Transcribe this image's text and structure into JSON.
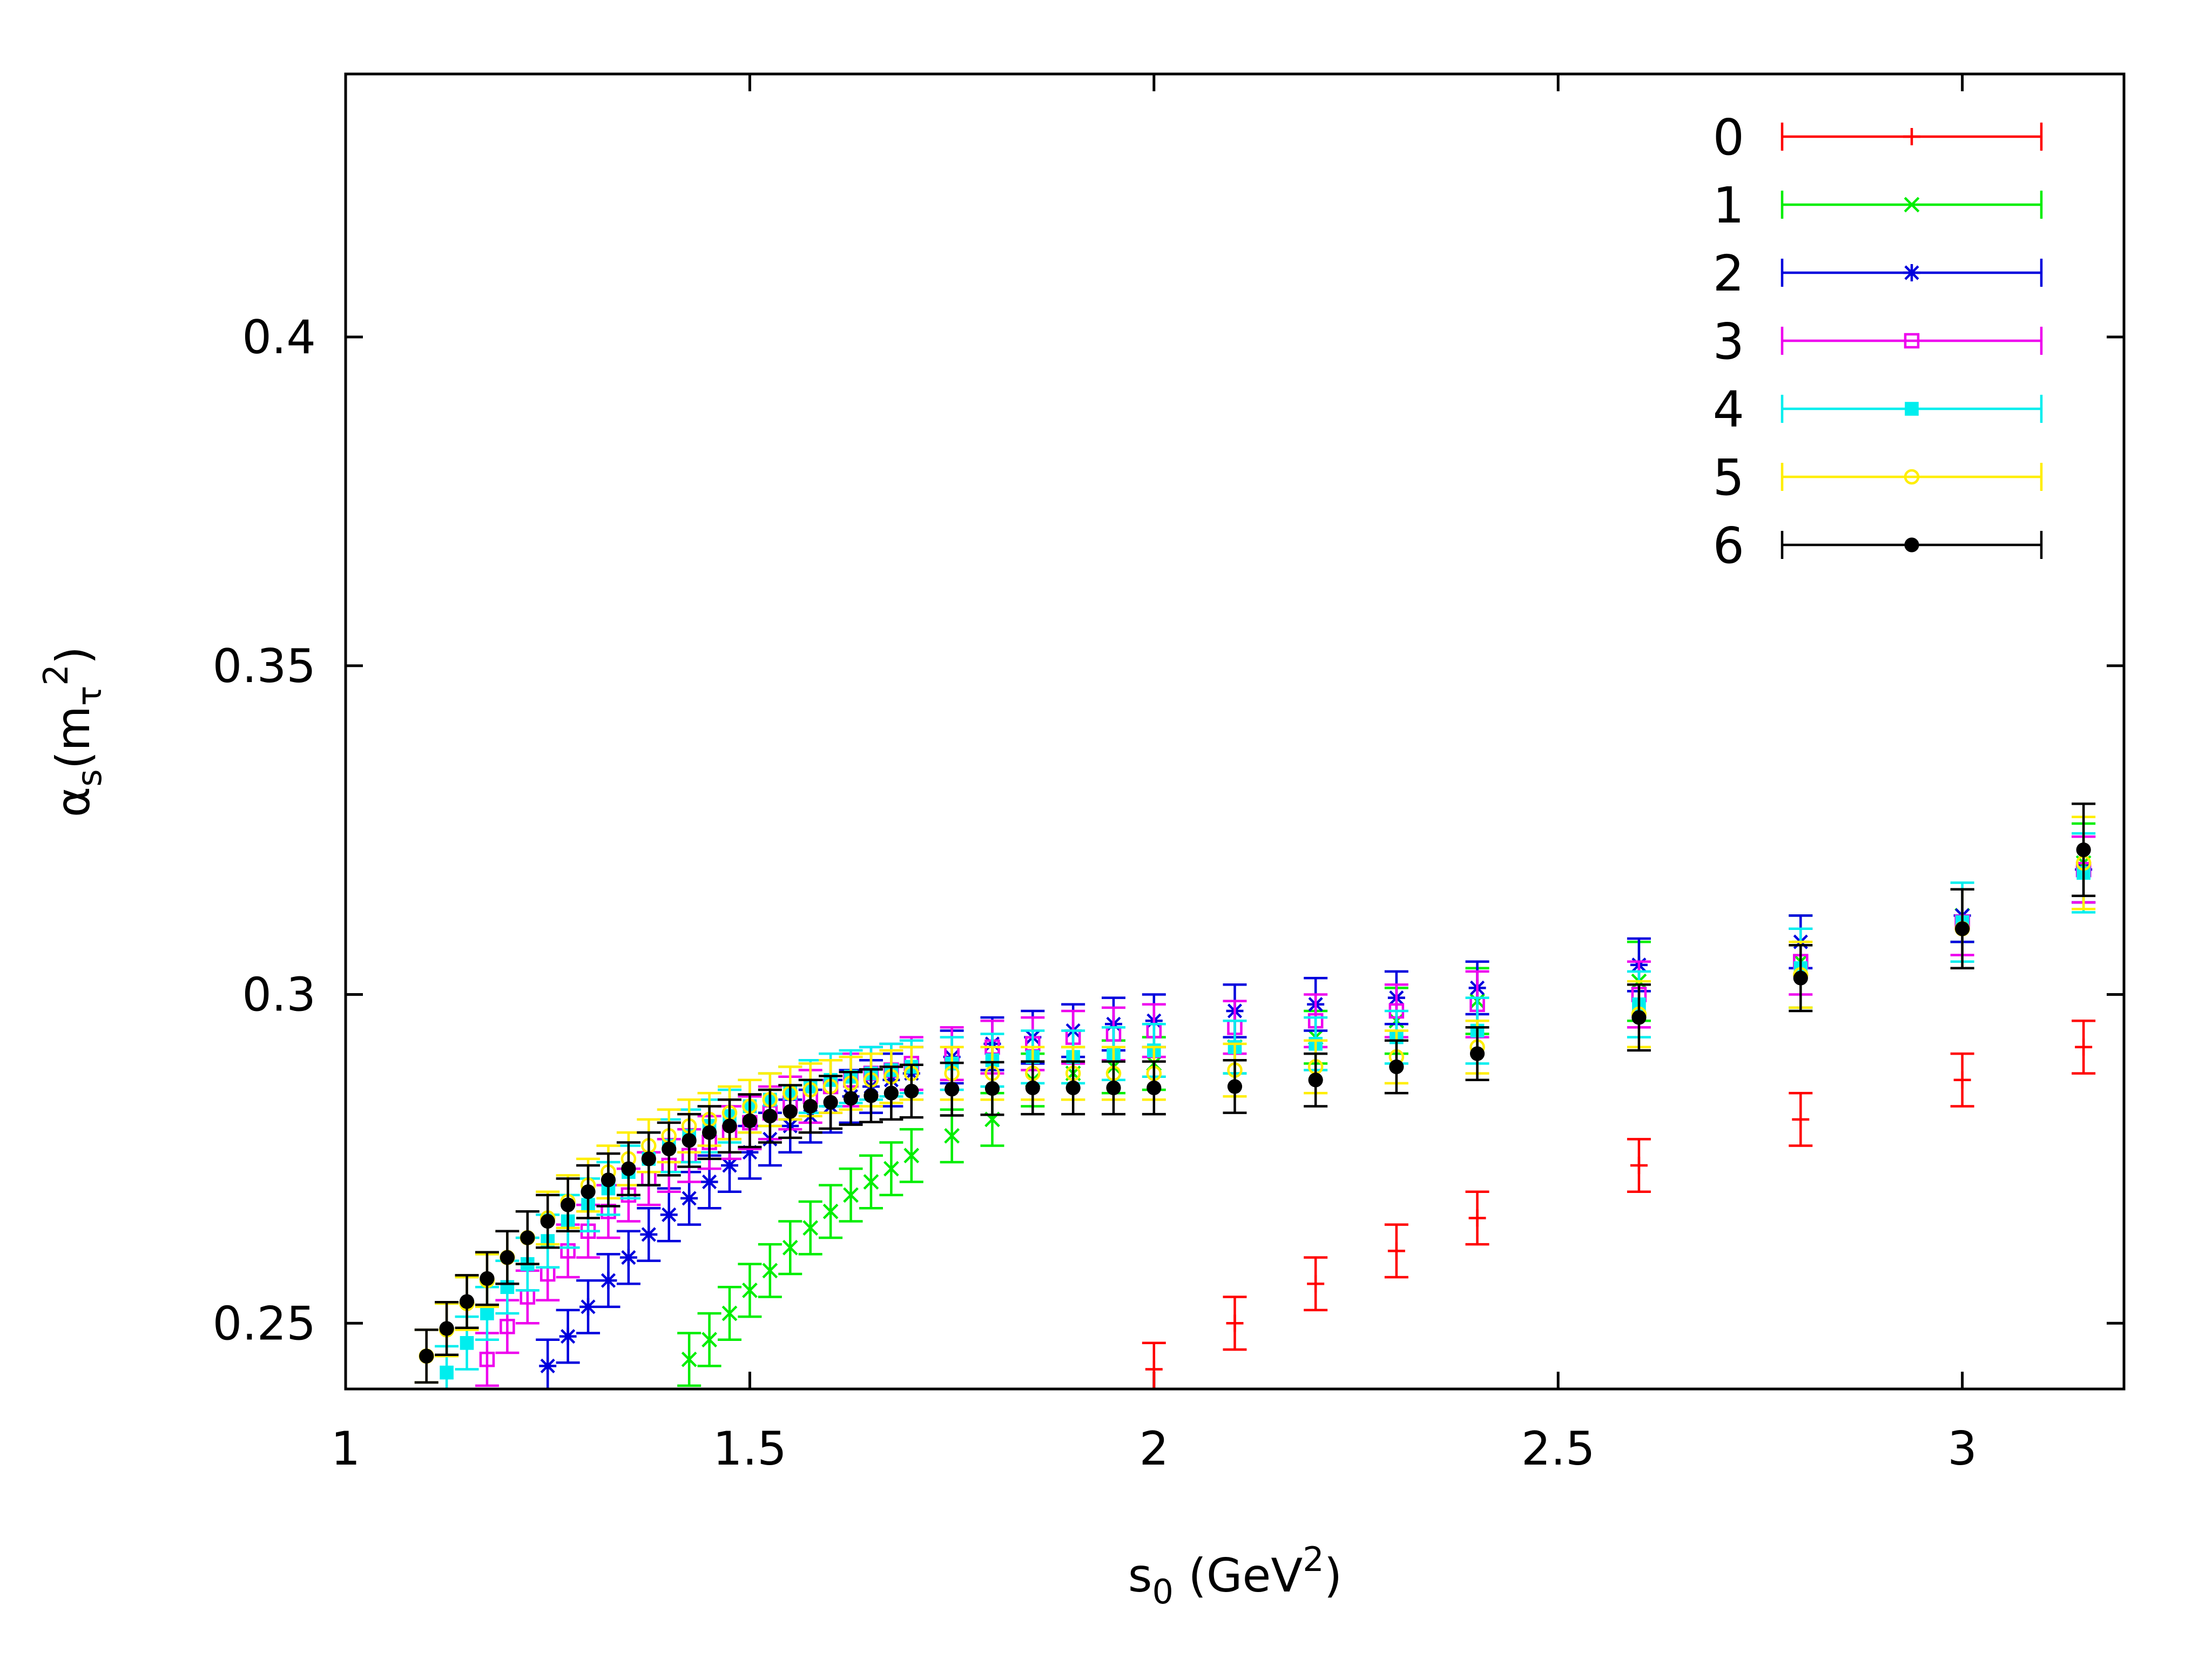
{
  "chart_data": {
    "type": "scatter",
    "title": "",
    "xlabel": {
      "main": "s",
      "sub": "0",
      "mid": " (GeV",
      "sup": "2",
      "end": ")"
    },
    "ylabel": {
      "alpha": "α",
      "sub": "s",
      "paren": "(m",
      "tau": "τ",
      "sup": "2",
      "close": ")"
    },
    "xlim": [
      1.0,
      3.2
    ],
    "ylim": [
      0.24,
      0.44
    ],
    "xticks": [
      {
        "value": 1,
        "label": "1"
      },
      {
        "value": 1.5,
        "label": "1.5"
      },
      {
        "value": 2,
        "label": "2"
      },
      {
        "value": 2.5,
        "label": "2.5"
      },
      {
        "value": 3,
        "label": "3"
      }
    ],
    "yticks": [
      {
        "value": 0.25,
        "label": "0.25"
      },
      {
        "value": 0.3,
        "label": "0.3"
      },
      {
        "value": 0.35,
        "label": "0.35"
      },
      {
        "value": 0.4,
        "label": "0.4"
      }
    ],
    "legend_position": "top-right",
    "series": [
      {
        "name": "0",
        "color": "#ff0000",
        "marker": "plus",
        "x": [
          2.0,
          2.1,
          2.2,
          2.3,
          2.4,
          2.6,
          2.8,
          3.0,
          3.15
        ],
        "y": [
          0.243,
          0.25,
          0.256,
          0.261,
          0.266,
          0.274,
          0.281,
          0.287,
          0.292
        ],
        "err": [
          0.004,
          0.004,
          0.004,
          0.004,
          0.004,
          0.004,
          0.004,
          0.004,
          0.004
        ]
      },
      {
        "name": "1",
        "color": "#00ee00",
        "marker": "cross",
        "x": [
          1.425,
          1.45,
          1.475,
          1.5,
          1.525,
          1.55,
          1.575,
          1.6,
          1.625,
          1.65,
          1.675,
          1.7,
          1.75,
          1.8,
          1.85,
          1.9,
          1.95,
          2.0,
          2.1,
          2.2,
          2.3,
          2.4,
          2.6,
          2.8,
          3.0,
          3.15
        ],
        "y": [
          0.2445,
          0.2475,
          0.2515,
          0.255,
          0.258,
          0.2615,
          0.2645,
          0.267,
          0.2695,
          0.2715,
          0.2735,
          0.2755,
          0.2785,
          0.281,
          0.287,
          0.288,
          0.289,
          0.2895,
          0.292,
          0.2935,
          0.296,
          0.299,
          0.302,
          0.305,
          0.312,
          0.32
        ],
        "err": [
          0.004,
          0.004,
          0.004,
          0.004,
          0.004,
          0.004,
          0.004,
          0.004,
          0.004,
          0.004,
          0.004,
          0.004,
          0.004,
          0.004,
          0.004,
          0.004,
          0.004,
          0.004,
          0.004,
          0.004,
          0.005,
          0.005,
          0.006,
          0.007,
          0.004,
          0.006
        ]
      },
      {
        "name": "2",
        "color": "#0000dd",
        "marker": "star",
        "x": [
          1.25,
          1.275,
          1.3,
          1.325,
          1.35,
          1.375,
          1.4,
          1.425,
          1.45,
          1.475,
          1.5,
          1.525,
          1.55,
          1.575,
          1.6,
          1.625,
          1.65,
          1.675,
          1.7,
          1.75,
          1.8,
          1.85,
          1.9,
          1.95,
          2.0,
          2.1,
          2.2,
          2.3,
          2.4,
          2.6,
          2.8,
          3.0,
          3.15
        ],
        "y": [
          0.2435,
          0.248,
          0.2525,
          0.2565,
          0.26,
          0.2635,
          0.2665,
          0.269,
          0.2715,
          0.274,
          0.276,
          0.278,
          0.28,
          0.2815,
          0.283,
          0.2845,
          0.286,
          0.287,
          0.288,
          0.2905,
          0.2925,
          0.2935,
          0.2945,
          0.2955,
          0.296,
          0.2975,
          0.2985,
          0.2995,
          0.301,
          0.3045,
          0.308,
          0.312,
          0.319
        ],
        "err": [
          0.004,
          0.004,
          0.004,
          0.004,
          0.004,
          0.004,
          0.004,
          0.004,
          0.004,
          0.004,
          0.004,
          0.004,
          0.004,
          0.004,
          0.004,
          0.004,
          0.004,
          0.004,
          0.004,
          0.004,
          0.004,
          0.004,
          0.004,
          0.004,
          0.004,
          0.004,
          0.004,
          0.004,
          0.004,
          0.004,
          0.004,
          0.004,
          0.005
        ]
      },
      {
        "name": "3",
        "color": "#ee00ee",
        "marker": "square-open",
        "x": [
          1.175,
          1.2,
          1.225,
          1.25,
          1.275,
          1.3,
          1.325,
          1.35,
          1.375,
          1.4,
          1.425,
          1.45,
          1.475,
          1.5,
          1.525,
          1.55,
          1.575,
          1.6,
          1.625,
          1.65,
          1.675,
          1.7,
          1.75,
          1.8,
          1.85,
          1.9,
          1.95,
          2.0,
          2.1,
          2.2,
          2.3,
          2.4,
          2.6,
          2.8,
          3.0,
          3.15
        ],
        "y": [
          0.2445,
          0.2495,
          0.254,
          0.2575,
          0.261,
          0.264,
          0.267,
          0.2695,
          0.272,
          0.274,
          0.2755,
          0.2775,
          0.279,
          0.2805,
          0.282,
          0.2835,
          0.2845,
          0.286,
          0.287,
          0.288,
          0.2885,
          0.2895,
          0.291,
          0.292,
          0.2925,
          0.2935,
          0.294,
          0.2945,
          0.295,
          0.296,
          0.2975,
          0.2985,
          0.3,
          0.305,
          0.311,
          0.319
        ],
        "err": [
          0.004,
          0.004,
          0.004,
          0.004,
          0.004,
          0.004,
          0.004,
          0.004,
          0.004,
          0.004,
          0.004,
          0.004,
          0.004,
          0.004,
          0.004,
          0.004,
          0.004,
          0.004,
          0.004,
          0.004,
          0.004,
          0.004,
          0.004,
          0.004,
          0.004,
          0.004,
          0.004,
          0.004,
          0.004,
          0.004,
          0.004,
          0.005,
          0.005,
          0.005,
          0.005,
          0.005
        ]
      },
      {
        "name": "4",
        "color": "#00eeee",
        "marker": "square-filled",
        "x": [
          1.125,
          1.15,
          1.175,
          1.2,
          1.225,
          1.25,
          1.275,
          1.3,
          1.325,
          1.35,
          1.375,
          1.4,
          1.425,
          1.45,
          1.475,
          1.5,
          1.525,
          1.55,
          1.575,
          1.6,
          1.625,
          1.65,
          1.675,
          1.7,
          1.75,
          1.8,
          1.85,
          1.9,
          1.95,
          2.0,
          2.1,
          2.2,
          2.3,
          2.4,
          2.6,
          2.8,
          3.0,
          3.15
        ],
        "y": [
          0.2425,
          0.247,
          0.2515,
          0.2555,
          0.259,
          0.2625,
          0.2655,
          0.268,
          0.2705,
          0.273,
          0.275,
          0.277,
          0.2785,
          0.28,
          0.2815,
          0.283,
          0.284,
          0.285,
          0.286,
          0.287,
          0.2875,
          0.288,
          0.2885,
          0.289,
          0.2895,
          0.29,
          0.2905,
          0.2905,
          0.291,
          0.2915,
          0.292,
          0.2925,
          0.2935,
          0.2945,
          0.2985,
          0.304,
          0.311,
          0.3185
        ],
        "err": [
          0.004,
          0.004,
          0.004,
          0.004,
          0.004,
          0.004,
          0.004,
          0.004,
          0.004,
          0.004,
          0.004,
          0.004,
          0.004,
          0.004,
          0.004,
          0.004,
          0.004,
          0.004,
          0.004,
          0.004,
          0.004,
          0.004,
          0.004,
          0.004,
          0.004,
          0.004,
          0.004,
          0.004,
          0.004,
          0.004,
          0.004,
          0.004,
          0.004,
          0.005,
          0.005,
          0.006,
          0.006,
          0.006
        ]
      },
      {
        "name": "5",
        "color": "#ffee00",
        "marker": "circle-open",
        "x": [
          1.1,
          1.125,
          1.15,
          1.175,
          1.2,
          1.225,
          1.25,
          1.275,
          1.3,
          1.325,
          1.35,
          1.375,
          1.4,
          1.425,
          1.45,
          1.475,
          1.5,
          1.525,
          1.55,
          1.575,
          1.6,
          1.625,
          1.65,
          1.675,
          1.7,
          1.75,
          1.8,
          1.85,
          1.9,
          1.95,
          2.0,
          2.1,
          2.2,
          2.3,
          2.4,
          2.6,
          2.8,
          3.0,
          3.15
        ],
        "y": [
          0.245,
          0.249,
          0.253,
          0.2565,
          0.26,
          0.263,
          0.266,
          0.2685,
          0.271,
          0.273,
          0.275,
          0.277,
          0.2785,
          0.28,
          0.281,
          0.282,
          0.283,
          0.284,
          0.285,
          0.2855,
          0.286,
          0.2865,
          0.287,
          0.2875,
          0.288,
          0.288,
          0.288,
          0.288,
          0.288,
          0.288,
          0.288,
          0.2885,
          0.289,
          0.2905,
          0.292,
          0.297,
          0.303,
          0.31,
          0.32
        ],
        "err": [
          0.004,
          0.004,
          0.004,
          0.004,
          0.004,
          0.004,
          0.004,
          0.004,
          0.004,
          0.004,
          0.004,
          0.004,
          0.004,
          0.004,
          0.004,
          0.004,
          0.004,
          0.004,
          0.004,
          0.004,
          0.004,
          0.004,
          0.004,
          0.004,
          0.004,
          0.004,
          0.004,
          0.004,
          0.004,
          0.004,
          0.004,
          0.004,
          0.004,
          0.004,
          0.004,
          0.005,
          0.005,
          0.006,
          0.007
        ]
      },
      {
        "name": "6",
        "color": "#000000",
        "marker": "circle-filled",
        "x": [
          1.1,
          1.125,
          1.15,
          1.175,
          1.2,
          1.225,
          1.25,
          1.275,
          1.3,
          1.325,
          1.35,
          1.375,
          1.4,
          1.425,
          1.45,
          1.475,
          1.5,
          1.525,
          1.55,
          1.575,
          1.6,
          1.625,
          1.65,
          1.675,
          1.7,
          1.75,
          1.8,
          1.85,
          1.9,
          1.95,
          2.0,
          2.1,
          2.2,
          2.3,
          2.4,
          2.6,
          2.8,
          3.0,
          3.15
        ],
        "y": [
          0.245,
          0.2492,
          0.2533,
          0.2568,
          0.26,
          0.263,
          0.2655,
          0.268,
          0.27,
          0.2718,
          0.2735,
          0.275,
          0.2765,
          0.2778,
          0.279,
          0.28,
          0.2808,
          0.2815,
          0.2822,
          0.283,
          0.2836,
          0.2842,
          0.2846,
          0.285,
          0.2853,
          0.2856,
          0.2857,
          0.2858,
          0.2858,
          0.2858,
          0.2858,
          0.286,
          0.287,
          0.289,
          0.291,
          0.2965,
          0.3025,
          0.31,
          0.322
        ],
        "err": [
          0.004,
          0.004,
          0.004,
          0.004,
          0.004,
          0.004,
          0.004,
          0.004,
          0.004,
          0.004,
          0.004,
          0.004,
          0.004,
          0.004,
          0.004,
          0.004,
          0.004,
          0.004,
          0.004,
          0.004,
          0.004,
          0.004,
          0.004,
          0.004,
          0.004,
          0.004,
          0.004,
          0.004,
          0.004,
          0.004,
          0.004,
          0.004,
          0.004,
          0.004,
          0.004,
          0.005,
          0.005,
          0.006,
          0.007
        ]
      }
    ]
  }
}
